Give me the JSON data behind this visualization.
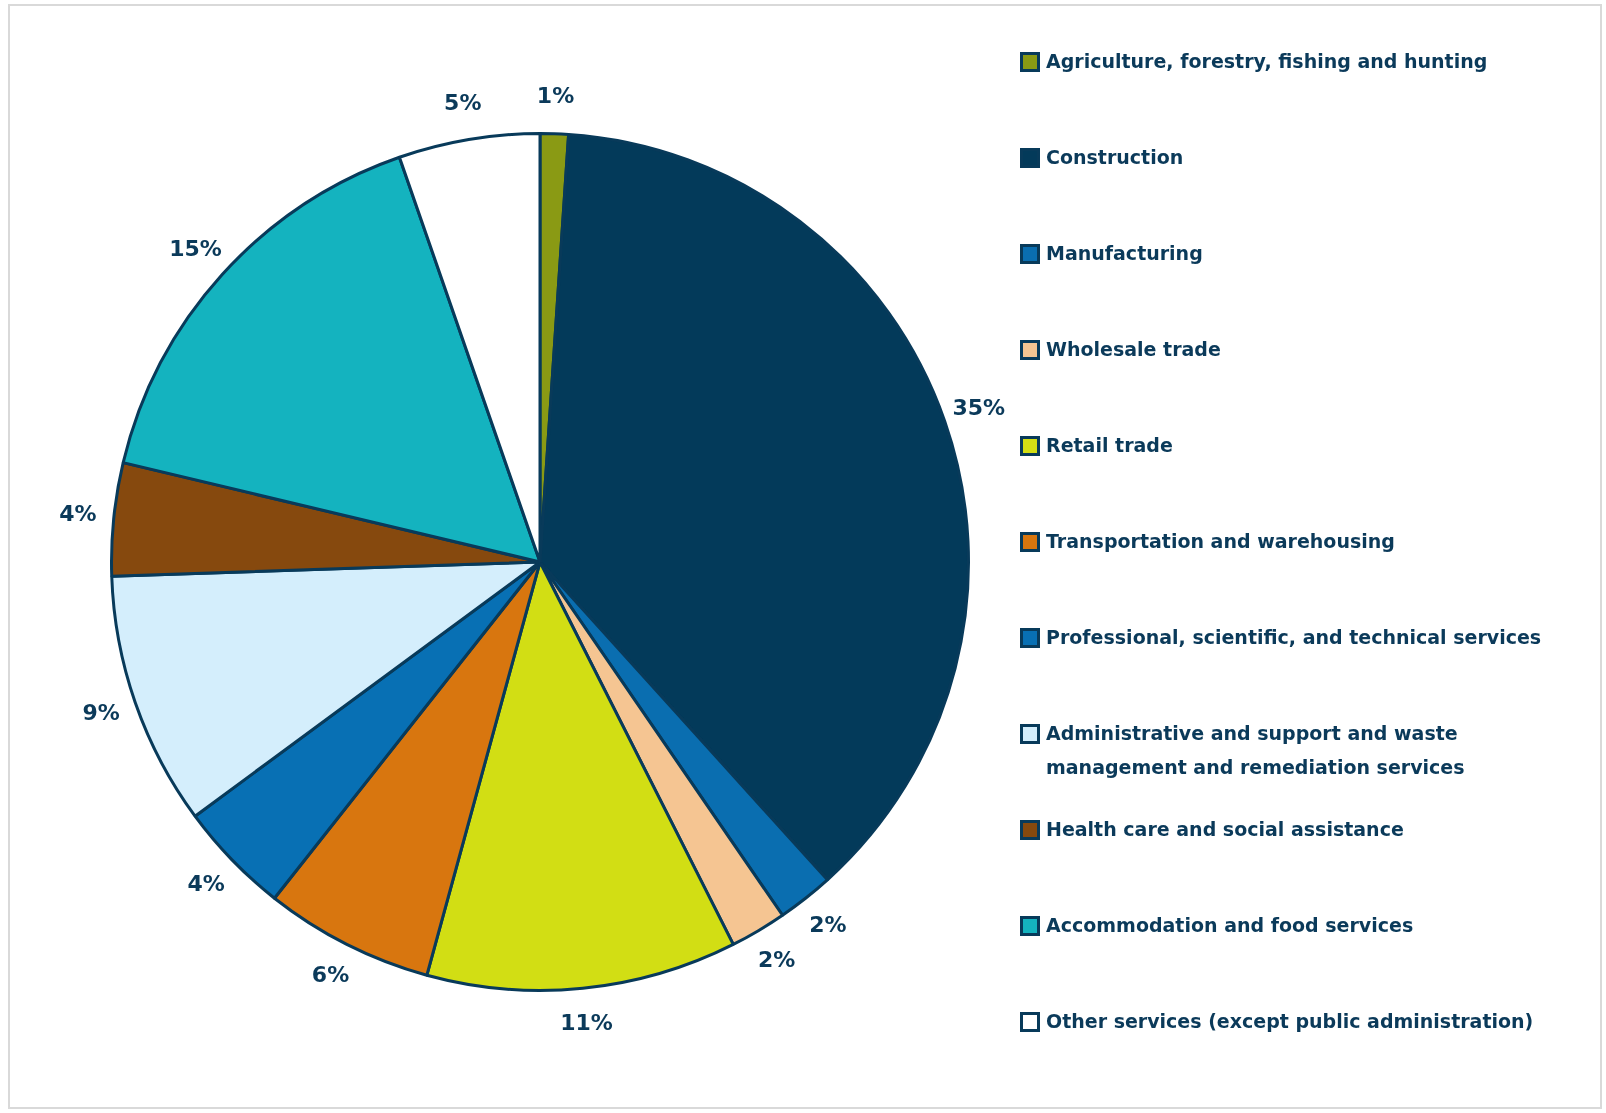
{
  "chart_data": {
    "type": "pie",
    "categories": [
      "Agriculture, forestry, fishing and hunting",
      "Construction",
      "Manufacturing",
      "Wholesale trade",
      "Retail trade",
      "Transportation and warehousing",
      "Professional, scientific, and technical services",
      "Administrative and support and waste management and remediation services",
      "Health care and social assistance",
      "Accommodation and food services",
      "Other services (except public administration)"
    ],
    "values": [
      1,
      35,
      2,
      2,
      11,
      6,
      4,
      9,
      4,
      15,
      5
    ],
    "value_labels": [
      "1%",
      "35%",
      "2%",
      "2%",
      "11%",
      "6%",
      "4%",
      "9%",
      "4%",
      "15%",
      "5%"
    ],
    "colors": [
      "#8a9a14",
      "#033a5a",
      "#0a6eb0",
      "#f5c592",
      "#d2de14",
      "#d8760f",
      "#0870b4",
      "#d4eefc",
      "#86490e",
      "#14b3bf",
      "#ffffff"
    ],
    "legend": "right"
  }
}
